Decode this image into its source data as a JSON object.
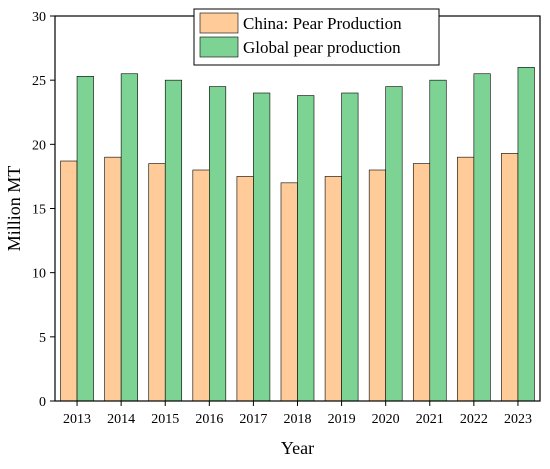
{
  "chart_data": {
    "type": "bar",
    "title": "",
    "xlabel": "Year",
    "ylabel": "Million MT",
    "ylim": [
      0,
      30
    ],
    "yticks": [
      0,
      5,
      10,
      15,
      20,
      25,
      30
    ],
    "categories": [
      "2013",
      "2014",
      "2015",
      "2016",
      "2017",
      "2018",
      "2019",
      "2020",
      "2021",
      "2022",
      "2023"
    ],
    "grid": false,
    "legend_position": "top-right",
    "series": [
      {
        "name": "China: Pear Production",
        "color": "#FFCC99",
        "values": [
          18.7,
          19.0,
          18.5,
          18.0,
          17.5,
          17.0,
          17.5,
          18.0,
          18.5,
          19.0,
          19.3
        ]
      },
      {
        "name": "Global pear production",
        "color": "#7DD394",
        "values": [
          25.3,
          25.5,
          25.0,
          24.5,
          24.0,
          23.8,
          24.0,
          24.5,
          25.0,
          25.5,
          26.0
        ]
      }
    ]
  }
}
